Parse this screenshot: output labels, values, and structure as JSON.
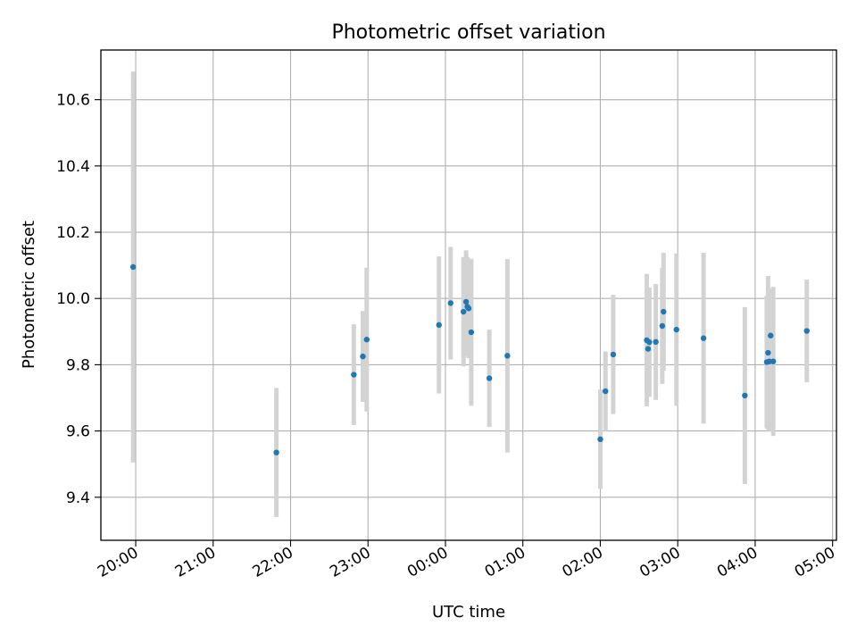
{
  "chart_data": {
    "type": "scatter",
    "title": "Photometric offset variation",
    "xlabel": "UTC time",
    "ylabel": "Photometric offset",
    "grid": true,
    "x_axis_kind": "time",
    "x_tick_labels": [
      "20:00",
      "21:00",
      "22:00",
      "23:00",
      "00:00",
      "01:00",
      "02:00",
      "03:00",
      "04:00",
      "05:00"
    ],
    "y_ticks": [
      9.4,
      9.6,
      9.8,
      10.0,
      10.2,
      10.4,
      10.6
    ],
    "y_tick_labels": [
      "9.4",
      "9.6",
      "9.8",
      "10.0",
      "10.2",
      "10.4",
      "10.6"
    ],
    "xlim": [
      "19:33",
      "05:03"
    ],
    "ylim": [
      9.27,
      10.75
    ],
    "point_color": "#1f77b4",
    "errorbar_color": "#d3d3d3",
    "series": [
      {
        "x": [
          "19:58",
          "21:49",
          "22:49",
          "22:56",
          "22:59",
          "23:55",
          "00:04",
          "00:14",
          "00:16",
          "00:17",
          "00:18",
          "00:20",
          "00:34",
          "00:48",
          "02:00",
          "02:04",
          "02:10",
          "02:36",
          "02:37",
          "02:38",
          "02:43",
          "02:48",
          "02:49",
          "02:59",
          "03:20",
          "03:52",
          "04:09",
          "04:10",
          "04:11",
          "04:12",
          "04:14",
          "04:40"
        ],
        "y": [
          10.095,
          9.535,
          9.77,
          9.825,
          9.876,
          9.92,
          9.986,
          9.96,
          9.99,
          9.975,
          9.97,
          9.898,
          9.759,
          9.827,
          9.575,
          9.72,
          9.831,
          9.874,
          9.848,
          9.868,
          9.869,
          9.917,
          9.96,
          9.906,
          9.88,
          9.707,
          9.808,
          9.836,
          9.81,
          9.888,
          9.81,
          9.902
        ],
        "yerr": [
          0.59,
          0.195,
          0.152,
          0.137,
          0.217,
          0.207,
          0.17,
          0.165,
          0.155,
          0.15,
          0.15,
          0.222,
          0.147,
          0.292,
          0.15,
          0.12,
          0.18,
          0.2,
          0.13,
          0.165,
          0.175,
          0.175,
          0.178,
          0.23,
          0.258,
          0.267,
          0.2,
          0.232,
          0.21,
          0.142,
          0.225,
          0.155
        ]
      }
    ]
  }
}
